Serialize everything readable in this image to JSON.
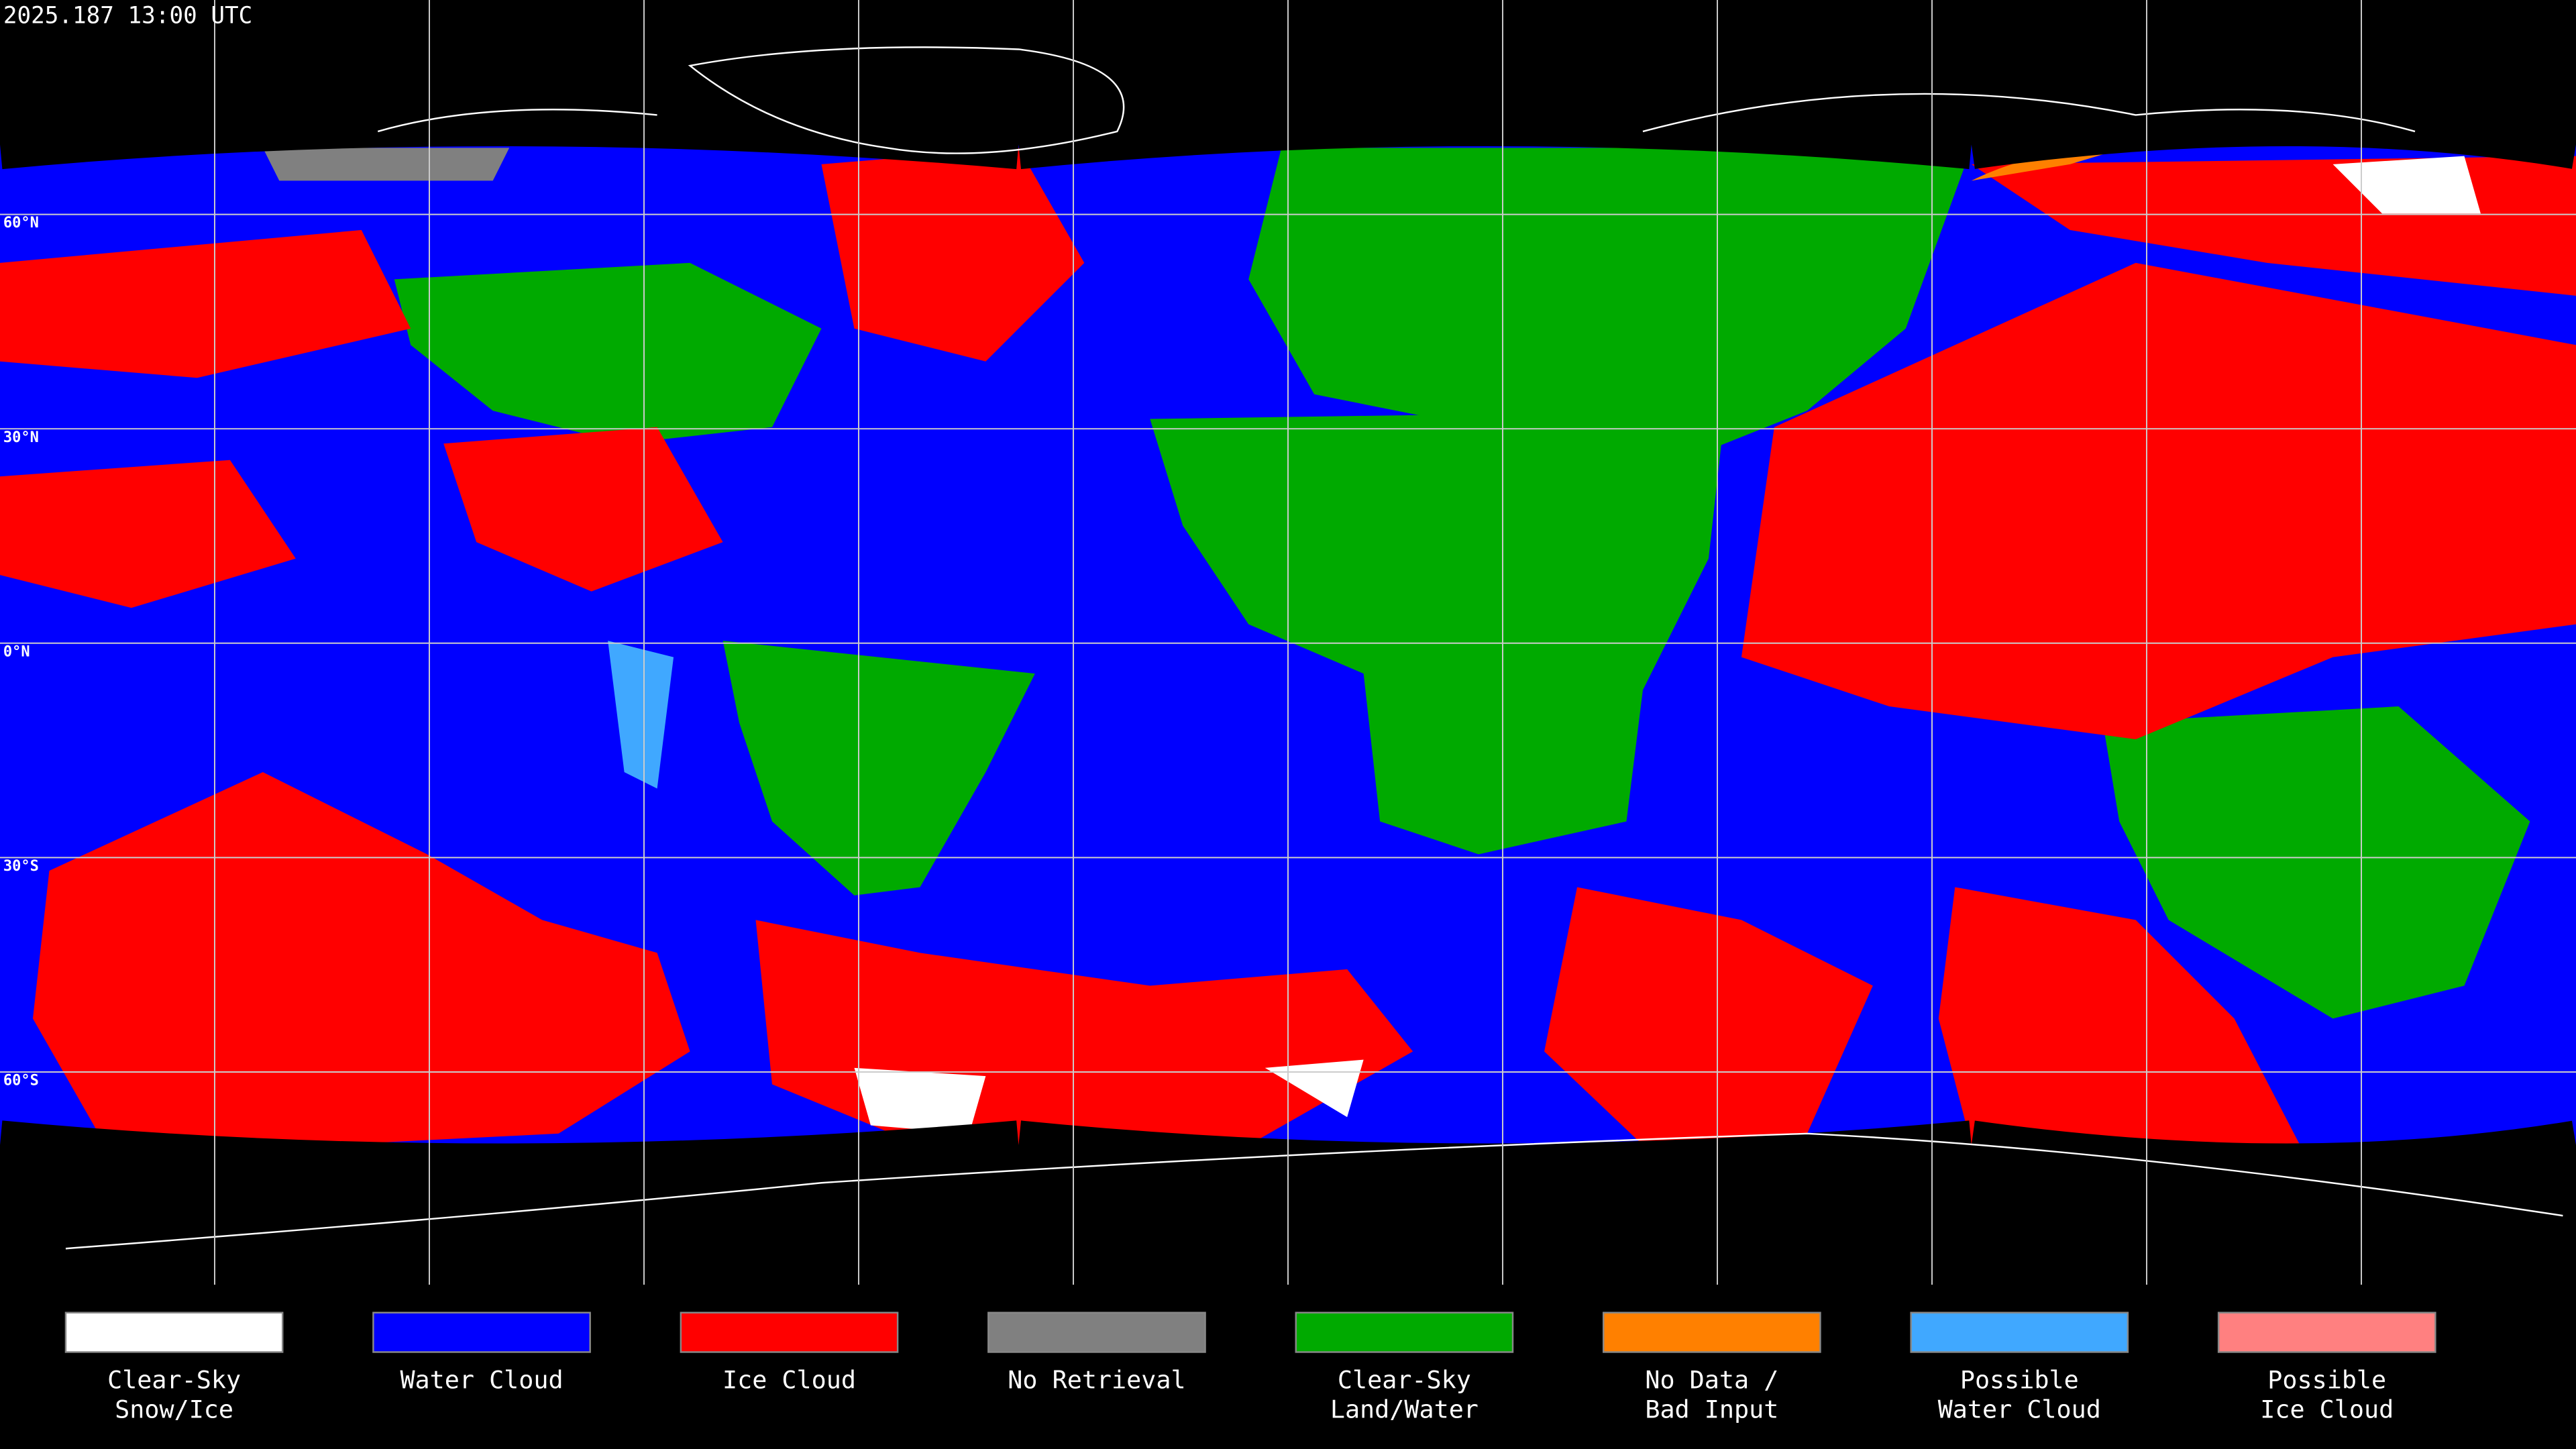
{
  "header": {
    "timestamp": "2025.187 13:00 UTC"
  },
  "map": {
    "lat_labels": [
      "60°N",
      "30°N",
      "0°N",
      "30°S",
      "60°S"
    ]
  },
  "legend": {
    "items": [
      {
        "lines": [
          "Clear-Sky",
          "Snow/Ice"
        ],
        "color": "#ffffff"
      },
      {
        "lines": [
          "Water Cloud"
        ],
        "color": "#0000ff"
      },
      {
        "lines": [
          "Ice Cloud"
        ],
        "color": "#ff0000"
      },
      {
        "lines": [
          "No Retrieval"
        ],
        "color": "#808080"
      },
      {
        "lines": [
          "Clear-Sky",
          "Land/Water"
        ],
        "color": "#00aa00"
      },
      {
        "lines": [
          "No Data /",
          "Bad Input"
        ],
        "color": "#ff8000"
      },
      {
        "lines": [
          "Possible",
          "Water Cloud"
        ],
        "color": "#40a8ff"
      },
      {
        "lines": [
          "Possible",
          "Ice Cloud"
        ],
        "color": "#ff8080"
      }
    ]
  }
}
